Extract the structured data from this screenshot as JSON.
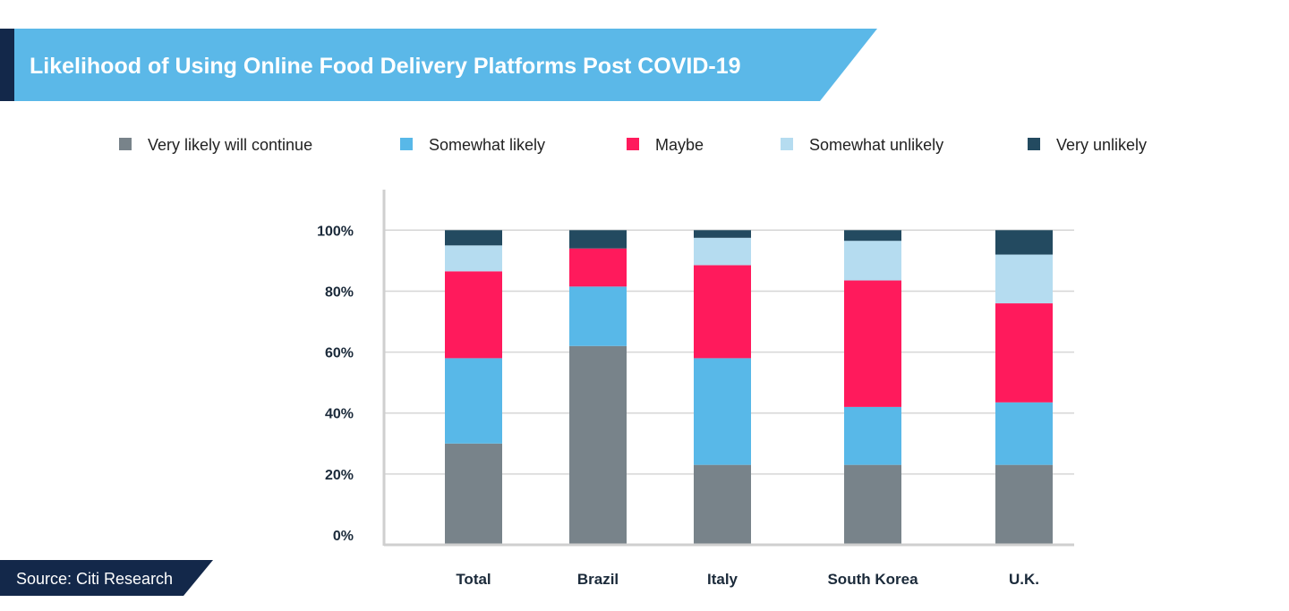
{
  "chart_data": {
    "type": "bar",
    "stacked": true,
    "title": "Likelihood of Using Online Food Delivery Platforms Post COVID-19",
    "source": "Source: Citi Research",
    "categories": [
      "Total",
      "Brazil",
      "Italy",
      "South Korea",
      "U.K."
    ],
    "series": [
      {
        "name": "Very likely will continue",
        "color": "#78838a",
        "values": [
          30,
          62,
          23,
          23,
          23
        ]
      },
      {
        "name": "Somewhat likely",
        "color": "#58b8e8",
        "values": [
          28,
          19.5,
          35,
          19,
          20.5
        ]
      },
      {
        "name": "Maybe",
        "color": "#ff1a5c",
        "values": [
          28.5,
          12.5,
          30.5,
          41.5,
          32.5
        ]
      },
      {
        "name": "Somewhat unlikely",
        "color": "#b5dcf0",
        "values": [
          8.5,
          0,
          9,
          13,
          16
        ]
      },
      {
        "name": "Very unlikely",
        "color": "#234a60",
        "values": [
          5,
          6,
          2.5,
          3.5,
          8
        ]
      }
    ],
    "ylim": [
      0,
      100
    ],
    "yticks": [
      "0%",
      "20%",
      "40%",
      "60%",
      "80%",
      "100%"
    ],
    "xlabel": "",
    "ylabel": "",
    "grid": true,
    "legend_position": "top",
    "colors": {
      "banner": "#5bb8e8",
      "banner_accent": "#13284a",
      "source_bg": "#13284a"
    }
  }
}
